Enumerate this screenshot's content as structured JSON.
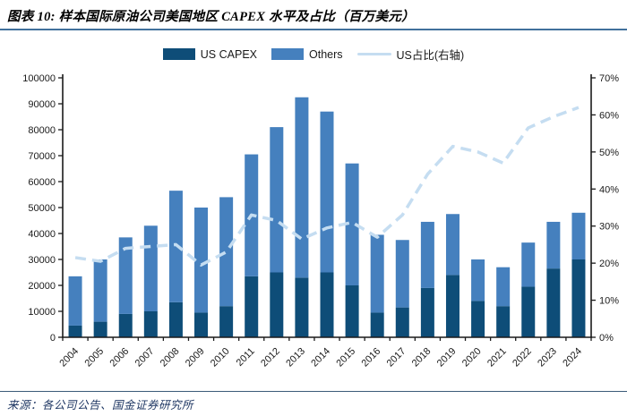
{
  "header": {
    "title": "图表 10: 样本国际原油公司美国地区 CAPEX 水平及占比（百万美元）"
  },
  "legend": {
    "us_capex_label": "US CAPEX",
    "others_label": "Others",
    "line_label": "US占比(右轴)"
  },
  "footer": {
    "source": "来源：各公司公告、国金证券研究所"
  },
  "colors": {
    "us_capex": "#0E4D78",
    "others": "#4580BE",
    "line": "#C5DDF1",
    "axis": "#1a1a1a",
    "title_rule": "#41719C"
  },
  "chart_data": {
    "type": "bar",
    "subtype": "stacked-bars-with-line-on-secondary-axis",
    "title": "样本国际原油公司美国地区 CAPEX 水平及占比（百万美元）",
    "categories": [
      "2004",
      "2005",
      "2006",
      "2007",
      "2008",
      "2009",
      "2010",
      "2011",
      "2012",
      "2013",
      "2014",
      "2015",
      "2016",
      "2017",
      "2018",
      "2019",
      "2020",
      "2021",
      "2022",
      "2023",
      "2024"
    ],
    "series": [
      {
        "name": "US CAPEX",
        "color": "#0E4D78",
        "values": [
          4500,
          6000,
          9000,
          10000,
          13500,
          9500,
          12000,
          23500,
          25000,
          23000,
          25000,
          20000,
          9500,
          11500,
          19000,
          24000,
          14000,
          12000,
          19500,
          26500,
          30000
        ]
      },
      {
        "name": "Others",
        "color": "#4580BE",
        "values": [
          19000,
          24000,
          29500,
          33000,
          43000,
          40500,
          42000,
          47000,
          56000,
          69500,
          62000,
          47000,
          30000,
          26000,
          25500,
          23500,
          16000,
          15000,
          17000,
          18000,
          18000
        ]
      }
    ],
    "line_series": {
      "name": "US占比(右轴)",
      "axis": "right",
      "color": "#C5DDF1",
      "style": "dashed",
      "values_pct": [
        21.5,
        20.5,
        24,
        24.5,
        25,
        19.5,
        23,
        33,
        31.5,
        26.5,
        29.5,
        31,
        27,
        33,
        44,
        51.5,
        50,
        47,
        56.5,
        59.5,
        62
      ]
    },
    "left_axis": {
      "min": 0,
      "max": 100000,
      "tick_step": 10000,
      "tick_labels": [
        "0",
        "10000",
        "20000",
        "30000",
        "40000",
        "50000",
        "60000",
        "70000",
        "80000",
        "90000",
        "100000"
      ]
    },
    "right_axis": {
      "min": 0,
      "max": 70,
      "tick_step": 10,
      "tick_labels": [
        "0%",
        "10%",
        "20%",
        "30%",
        "40%",
        "50%",
        "60%",
        "70%"
      ]
    },
    "grid": false,
    "legend_position": "top"
  }
}
